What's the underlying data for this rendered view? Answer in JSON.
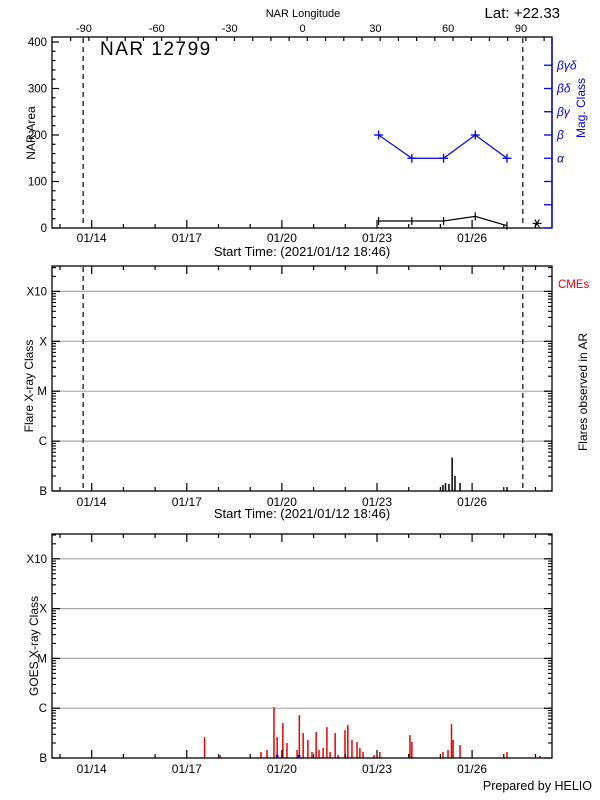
{
  "header": {
    "lat_label": "Lat: +22.33",
    "nar_longitude_title": "NAR Longitude",
    "region_title": "NAR  12799"
  },
  "captions": {
    "start_time": "Start Time: (2021/01/12 18:46)",
    "prepared_by": "Prepared by HELIO",
    "cmes_label": "CMEs",
    "flares_in_ar_label": "Flares observed in AR",
    "mag_class_label": "Mag. Class",
    "nar_area_label": "NAR Area",
    "flare_xray_label": "Flare X-ray Class",
    "goes_xray_label": "GOES X-ray Class"
  },
  "colors": {
    "accent_blue": "#0000dd",
    "flare_red": "#e80000",
    "grid_gray": "#a6a6a6",
    "black": "#000000",
    "background": "#ffffff"
  },
  "time_axis": {
    "date_labels": [
      "01/14",
      "01/17",
      "01/20",
      "01/23",
      "01/26"
    ],
    "major_tick_days": [
      1,
      4,
      7,
      10,
      13
    ],
    "minor_tick_days": [
      0,
      1,
      2,
      3,
      4,
      5,
      6,
      7,
      8,
      9,
      10,
      11,
      12,
      13,
      14,
      15
    ],
    "domain_days": [
      -0.25,
      15.55
    ],
    "start_date": "2021/01/12 18:46"
  },
  "longitude_axis": {
    "tick_labels": [
      "-90",
      "-60",
      "-30",
      "0",
      "30",
      "60",
      "90"
    ],
    "tick_values": [
      -90,
      -60,
      -30,
      0,
      30,
      60,
      90
    ],
    "minor_step_deg": 7.5,
    "domain_deg": [
      -103,
      103
    ]
  },
  "chart_data": [
    {
      "type": "line",
      "name": "nar-area-panel",
      "title": "NAR  12799",
      "ylabel": "NAR Area",
      "ylabel_right": "Mag. Class",
      "ylim": [
        0,
        410
      ],
      "yticks": [
        0,
        100,
        200,
        300,
        400
      ],
      "ytick_minor_step": 20,
      "mag_class_ticks": [
        {
          "value": 0,
          "label": ""
        },
        {
          "value": 50,
          "label": ""
        },
        {
          "value": 100,
          "label": ""
        },
        {
          "value": 150,
          "label": "α"
        },
        {
          "value": 200,
          "label": "β"
        },
        {
          "value": 250,
          "label": "βγ"
        },
        {
          "value": 300,
          "label": "βδ"
        },
        {
          "value": 350,
          "label": "βγδ"
        }
      ],
      "series": [
        {
          "name": "mag-class",
          "color_key": "accent_blue",
          "marker": "plus",
          "days": [
            10.05,
            11.1,
            12.1,
            13.1,
            14.1
          ],
          "class_labels": [
            "β",
            "α",
            "α",
            "β",
            "α"
          ],
          "area_scale_values": [
            200,
            150,
            150,
            200,
            150
          ]
        },
        {
          "name": "nar-area",
          "color_key": "black",
          "marker": "vtick",
          "days": [
            10.05,
            11.1,
            12.1,
            13.1,
            14.1
          ],
          "values": [
            15,
            15,
            15,
            25,
            5
          ]
        }
      ],
      "dashed_line_days": [
        0.73,
        14.6
      ],
      "limb_marker": {
        "day": 15.05,
        "value": 10,
        "symbol": "asterisk"
      }
    },
    {
      "type": "spikes",
      "name": "flares-in-ar-panel",
      "ylabel": "Flare X-ray Class",
      "yticks": [
        "B",
        "C",
        "M",
        "X",
        "X10"
      ],
      "ymax_decades": 4.5,
      "color_key": "black",
      "spikes": [
        [
          12.08,
          0.12
        ],
        [
          12.16,
          0.16
        ],
        [
          12.27,
          0.14
        ],
        [
          12.37,
          0.67
        ],
        [
          12.46,
          0.3
        ],
        [
          12.62,
          0.16
        ],
        [
          14.1,
          0.08
        ]
      ],
      "dashed_line_days": [
        0.73,
        14.6
      ]
    },
    {
      "type": "spikes",
      "name": "goes-xray-panel",
      "ylabel": "GOES X-ray Class",
      "yticks": [
        "B",
        "C",
        "M",
        "X",
        "X10"
      ],
      "ymax_decades": 4.5,
      "color_key": "flare_red",
      "spikes": [
        [
          4.56,
          0.42
        ],
        [
          5.05,
          0.06
        ],
        [
          6.34,
          0.12
        ],
        [
          6.53,
          0.16
        ],
        [
          6.75,
          1.02
        ],
        [
          6.85,
          0.42
        ],
        [
          7.03,
          0.7
        ],
        [
          7.16,
          0.3
        ],
        [
          7.48,
          0.16
        ],
        [
          7.55,
          0.86
        ],
        [
          7.67,
          0.5
        ],
        [
          7.82,
          0.36
        ],
        [
          7.95,
          0.12
        ],
        [
          8.08,
          0.52
        ],
        [
          8.17,
          0.16
        ],
        [
          8.3,
          0.2
        ],
        [
          8.42,
          0.62
        ],
        [
          8.52,
          0.12
        ],
        [
          8.68,
          0.5
        ],
        [
          8.77,
          0.06
        ],
        [
          8.99,
          0.56
        ],
        [
          9.08,
          0.66
        ],
        [
          9.21,
          0.36
        ],
        [
          9.37,
          0.32
        ],
        [
          9.46,
          0.2
        ],
        [
          9.56,
          0.12
        ],
        [
          9.91,
          0.06
        ],
        [
          10.09,
          0.12
        ],
        [
          11.04,
          0.46
        ],
        [
          11.1,
          0.32
        ],
        [
          12.08,
          0.12
        ],
        [
          12.24,
          0.16
        ],
        [
          12.35,
          0.68
        ],
        [
          12.4,
          0.36
        ],
        [
          12.62,
          0.26
        ],
        [
          14.1,
          0.12
        ],
        [
          15.14,
          0.04
        ]
      ],
      "event_marks_days": [
        6.85,
        7.54
      ]
    }
  ]
}
